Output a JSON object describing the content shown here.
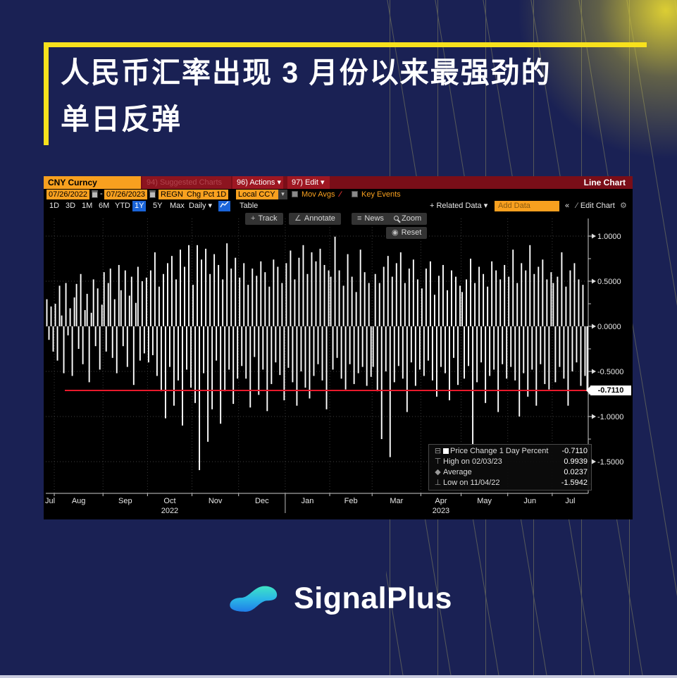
{
  "poster": {
    "title_line1": "人民币汇率出现 3 月份以来最强劲的",
    "title_line2": "单日反弹",
    "brand": "SignalPlus"
  },
  "colors": {
    "background": "#1a2154",
    "accent_yellow": "#f7e11c",
    "terminal_red_bar": "#7a0e18",
    "bloomberg_orange": "#f8a01f",
    "range_active_blue": "#1a64d8",
    "bar_color": "#ffffff",
    "last_price_line": "#e8192b",
    "brand_gradient_start": "#3fe3c5",
    "brand_gradient_end": "#1f7de8"
  },
  "terminal": {
    "title_bar": {
      "security": "CNY Curncy",
      "suggested_charts": "94) Suggested Charts",
      "actions": "96) Actions ▾",
      "edit": "97) Edit ▾",
      "chart_type": "Line Chart"
    },
    "settings_bar": {
      "date_from": "07/26/2022",
      "date_separator": "-",
      "date_to": "07/26/2023",
      "study": "REGN",
      "field": "Chg Pct 1D",
      "currency": "Local CCY",
      "mov_avgs": "Mov Avgs",
      "key_events": "Key Events"
    },
    "range_bar": {
      "ranges": [
        "1D",
        "3D",
        "1M",
        "6M",
        "YTD",
        "1Y",
        "5Y",
        "Max"
      ],
      "active_range": "1Y",
      "period": "Daily ▾",
      "table": "Table",
      "related_data": "+ Related Data ▾",
      "add_data_placeholder": "Add Data",
      "collapse": "«",
      "edit_chart": "Edit Chart",
      "gear": "⚙"
    },
    "overlay_toolbar": {
      "track": "Track",
      "annotate": "Annotate",
      "news": "News",
      "zoom": "Zoom",
      "reset": "Reset"
    },
    "legend": [
      {
        "marker": "series-square",
        "label": "Price Change 1 Day Percent",
        "value": "-0.7110"
      },
      {
        "marker": "high-tick",
        "label": "High on 02/03/23",
        "value": "0.9939"
      },
      {
        "marker": "average-diamond",
        "label": "Average",
        "value": "0.0237"
      },
      {
        "marker": "low-tick",
        "label": "Low on 11/04/22",
        "value": "-1.5942"
      }
    ],
    "last_value_tag": "-0.7110"
  },
  "chart_data": {
    "type": "bar",
    "series_name": "Price Change 1 Day Percent",
    "security": "CNY Curncy",
    "date_range": [
      "07/26/2022",
      "07/26/2023"
    ],
    "y_ticks": [
      "1.0000",
      "0.5000",
      "0.0000",
      "-0.5000",
      "-1.0000",
      "-1.5000"
    ],
    "ylim": [
      -1.85,
      1.26
    ],
    "grid": true,
    "last_value": -0.711,
    "high": {
      "date": "02/03/23",
      "value": 0.9939
    },
    "average": 0.0237,
    "low": {
      "date": "11/04/22",
      "value": -1.5942
    },
    "x_months": [
      {
        "label": "Jul",
        "days": 4
      },
      {
        "label": "Aug",
        "days": 23
      },
      {
        "label": "Sep",
        "days": 21
      },
      {
        "label": "Oct",
        "days": 21,
        "year": "2022"
      },
      {
        "label": "Nov",
        "days": 22
      },
      {
        "label": "Dec",
        "days": 22
      },
      {
        "label": "Jan",
        "days": 21,
        "year_sep": true
      },
      {
        "label": "Feb",
        "days": 20
      },
      {
        "label": "Mar",
        "days": 23
      },
      {
        "label": "Apr",
        "days": 19,
        "year": "2023"
      },
      {
        "label": "May",
        "days": 22
      },
      {
        "label": "Jun",
        "days": 21
      },
      {
        "label": "Jul",
        "days": 17
      }
    ],
    "values": [
      0.3,
      -0.15,
      0.22,
      -0.28,
      0.25,
      -0.38,
      0.45,
      0.12,
      -0.52,
      0.48,
      -0.1,
      0.2,
      -0.55,
      0.32,
      0.47,
      -0.25,
      0.58,
      -0.42,
      0.18,
      0.36,
      -0.62,
      0.15,
      0.52,
      -0.22,
      0.42,
      -0.48,
      0.24,
      0.6,
      -0.28,
      0.48,
      0.64,
      -0.35,
      0.3,
      -0.52,
      0.68,
      0.4,
      -0.22,
      0.62,
      -0.45,
      0.34,
      0.55,
      -0.65,
      0.26,
      0.66,
      -0.38,
      0.5,
      -0.3,
      0.54,
      -0.4,
      0.62,
      -0.32,
      0.82,
      -0.55,
      0.44,
      -0.72,
      0.58,
      -1.02,
      0.7,
      -0.45,
      0.78,
      -0.88,
      0.52,
      -0.6,
      0.85,
      -1.1,
      0.66,
      -0.48,
      0.9,
      -0.68,
      0.46,
      -0.85,
      0.9,
      -1.5942,
      0.74,
      -0.52,
      0.86,
      -1.28,
      0.58,
      -0.92,
      0.8,
      -0.38,
      0.68,
      -1.08,
      0.52,
      -0.72,
      0.92,
      -0.48,
      0.64,
      -0.86,
      0.76,
      -0.58,
      0.54,
      -0.44,
      0.7,
      -0.58,
      0.46,
      -0.9,
      0.64,
      -0.34,
      0.56,
      -0.76,
      0.72,
      -0.48,
      0.6,
      -0.94,
      0.44,
      -0.64,
      0.74,
      -0.4,
      0.66,
      -0.54,
      0.48,
      -0.82,
      0.7,
      -0.46,
      0.84,
      -0.62,
      0.52,
      -0.88,
      0.76,
      -0.5,
      0.9,
      -0.68,
      0.58,
      -0.8,
      0.82,
      -0.55,
      0.72,
      -0.42,
      0.86,
      -0.6,
      0.68,
      -0.92,
      0.62,
      0.55,
      -0.48,
      0.9939,
      -0.35,
      0.62,
      -0.58,
      0.45,
      -0.7,
      0.8,
      -0.42,
      0.55,
      -0.64,
      0.38,
      -0.52,
      0.85,
      -0.45,
      0.6,
      -0.66,
      0.48,
      -0.56,
      -0.45,
      0.58,
      -0.72,
      0.48,
      -1.25,
      0.66,
      -0.5,
      0.78,
      -1.45,
      0.55,
      -0.62,
      0.7,
      -0.44,
      0.82,
      -0.58,
      0.48,
      -0.95,
      0.64,
      -0.4,
      0.74,
      -0.66,
      0.52,
      -0.48,
      0.42,
      -0.55,
      0.64,
      -0.38,
      0.72,
      -0.6,
      0.35,
      -0.78,
      0.56,
      -0.45,
      0.68,
      -0.52,
      0.4,
      -0.82,
      0.62,
      -0.35,
      0.55,
      -0.65,
      0.45,
      0.38,
      -0.58,
      0.52,
      -0.44,
      0.75,
      -1.32,
      0.48,
      -0.62,
      0.66,
      -0.4,
      0.58,
      -0.85,
      0.44,
      -0.55,
      0.72,
      -0.48,
      0.62,
      -0.95,
      0.52,
      -0.42,
      0.68,
      -0.58,
      0.55,
      -0.45,
      0.85,
      -0.6,
      0.48,
      -1.0,
      0.7,
      -0.52,
      0.62,
      -0.78,
      0.9,
      -0.48,
      0.58,
      -0.88,
      0.66,
      -0.42,
      0.74,
      -0.64,
      0.52,
      -0.7,
      0.6,
      0.48,
      -0.62,
      0.55,
      -0.45,
      0.82,
      -0.58,
      0.44,
      -0.88,
      0.62,
      -0.5,
      0.7,
      -0.4,
      0.52,
      -0.66,
      0.46,
      -0.55,
      -0.711
    ]
  }
}
